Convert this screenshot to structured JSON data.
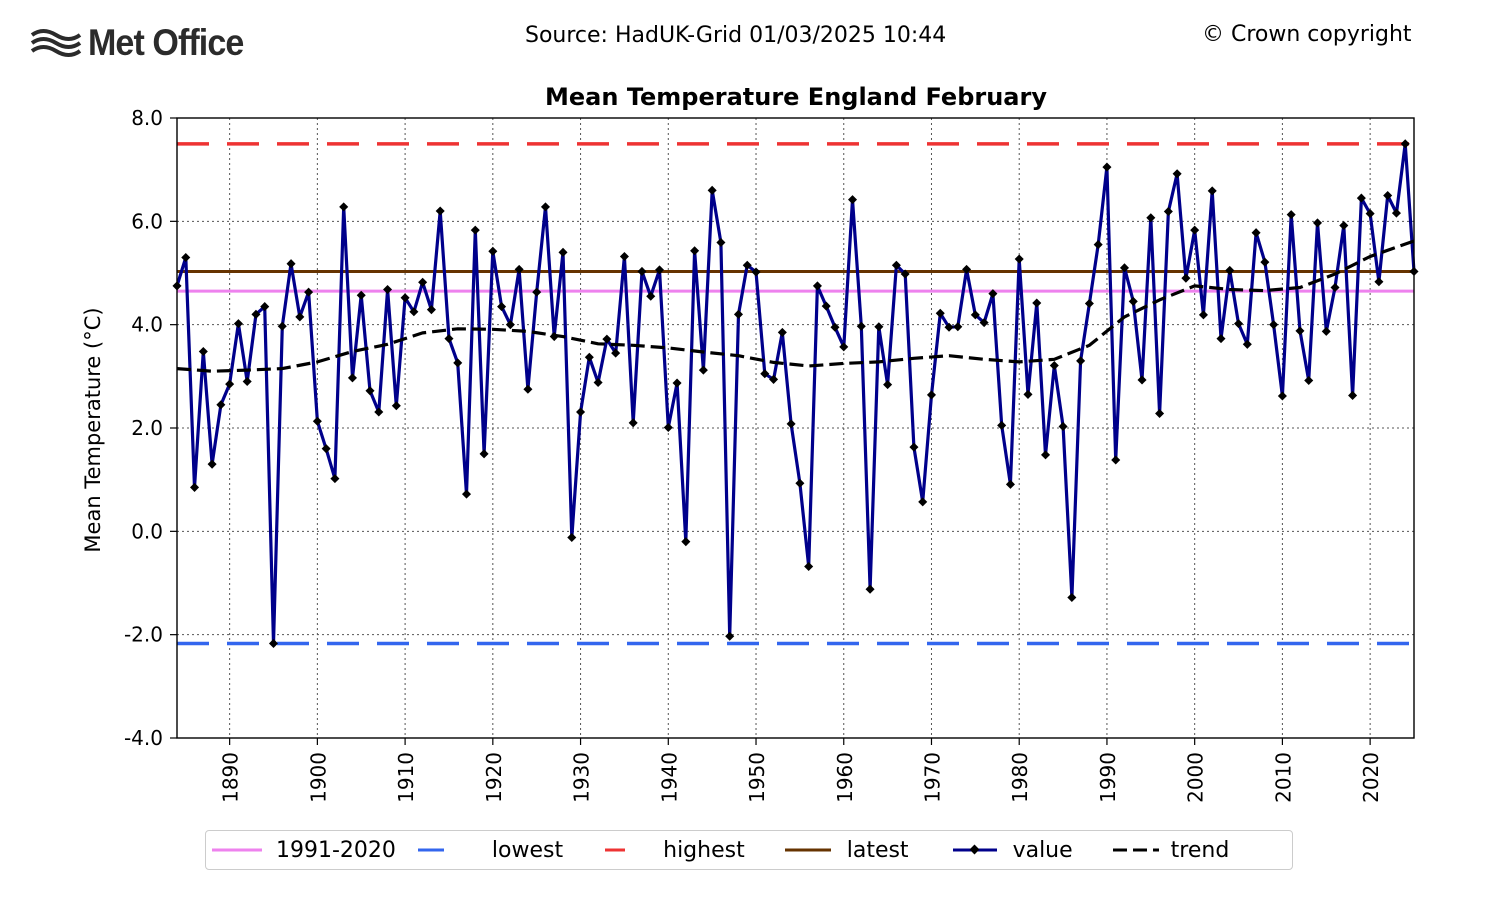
{
  "header": {
    "logo_text": "Met Office",
    "source_text": "Source: HadUK-Grid 01/03/2025 10:44",
    "copyright_text": "© Crown copyright"
  },
  "colors": {
    "value": "#00008b",
    "trend": "#000000",
    "baseline": "#ee82ee",
    "lowest": "#3366ee",
    "highest": "#ee3333",
    "latest": "#663300"
  },
  "chart_data": {
    "type": "line",
    "title": "Mean Temperature England February",
    "xlabel": "",
    "ylabel": "Mean Temperature (°C)",
    "xlim": [
      1884,
      2025
    ],
    "ylim": [
      -4,
      8
    ],
    "yticks": [
      "-4.0",
      "-2.0",
      "0.0",
      "2.0",
      "4.0",
      "6.0",
      "8.0"
    ],
    "xticks": [
      "1890",
      "1900",
      "1910",
      "1920",
      "1930",
      "1940",
      "1950",
      "1960",
      "1970",
      "1980",
      "1990",
      "2000",
      "2010",
      "2020"
    ],
    "grid": true,
    "legend_position": "below",
    "reference_lines": {
      "1991-2020": 4.65,
      "lowest": -2.17,
      "highest": 7.5,
      "latest": 5.03
    },
    "legend": [
      "1991-2020",
      "lowest",
      "highest",
      "latest",
      "value",
      "trend"
    ],
    "series": [
      {
        "name": "value",
        "x": [
          1884,
          1885,
          1886,
          1887,
          1888,
          1889,
          1890,
          1891,
          1892,
          1893,
          1894,
          1895,
          1896,
          1897,
          1898,
          1899,
          1900,
          1901,
          1902,
          1903,
          1904,
          1905,
          1906,
          1907,
          1908,
          1909,
          1910,
          1911,
          1912,
          1913,
          1914,
          1915,
          1916,
          1917,
          1918,
          1919,
          1920,
          1921,
          1922,
          1923,
          1924,
          1925,
          1926,
          1927,
          1928,
          1929,
          1930,
          1931,
          1932,
          1933,
          1934,
          1935,
          1936,
          1937,
          1938,
          1939,
          1940,
          1941,
          1942,
          1943,
          1944,
          1945,
          1946,
          1947,
          1948,
          1949,
          1950,
          1951,
          1952,
          1953,
          1954,
          1955,
          1956,
          1957,
          1958,
          1959,
          1960,
          1961,
          1962,
          1963,
          1964,
          1965,
          1966,
          1967,
          1968,
          1969,
          1970,
          1971,
          1972,
          1973,
          1974,
          1975,
          1976,
          1977,
          1978,
          1979,
          1980,
          1981,
          1982,
          1983,
          1984,
          1985,
          1986,
          1987,
          1988,
          1989,
          1990,
          1991,
          1992,
          1993,
          1994,
          1995,
          1996,
          1997,
          1998,
          1999,
          2000,
          2001,
          2002,
          2003,
          2004,
          2005,
          2006,
          2007,
          2008,
          2009,
          2010,
          2011,
          2012,
          2013,
          2014,
          2015,
          2016,
          2017,
          2018,
          2019,
          2020,
          2021,
          2022,
          2023,
          2024,
          2025
        ],
        "values": [
          4.75,
          5.3,
          0.85,
          3.48,
          1.3,
          2.45,
          2.85,
          4.02,
          2.9,
          4.2,
          4.35,
          -2.17,
          3.97,
          5.18,
          4.15,
          4.63,
          2.13,
          1.6,
          1.02,
          6.28,
          2.97,
          4.57,
          2.72,
          2.31,
          4.68,
          2.43,
          4.52,
          4.25,
          4.82,
          4.29,
          6.2,
          3.73,
          3.26,
          0.72,
          5.83,
          1.5,
          5.42,
          4.35,
          4.0,
          5.07,
          2.75,
          4.63,
          6.28,
          3.77,
          5.4,
          -0.12,
          2.31,
          3.37,
          2.88,
          3.72,
          3.45,
          5.32,
          2.1,
          5.03,
          4.55,
          5.06,
          2.01,
          2.87,
          -0.2,
          5.43,
          3.12,
          6.6,
          5.59,
          -2.03,
          4.2,
          5.15,
          5.02,
          3.05,
          2.94,
          3.85,
          2.08,
          0.93,
          -0.68,
          4.75,
          4.36,
          3.95,
          3.57,
          6.42,
          3.97,
          -1.12,
          3.96,
          2.84,
          5.15,
          4.98,
          1.63,
          0.57,
          2.64,
          4.22,
          3.95,
          3.96,
          5.07,
          4.19,
          4.04,
          4.6,
          2.05,
          0.91,
          5.27,
          2.65,
          4.42,
          1.48,
          3.21,
          2.03,
          -1.28,
          3.3,
          4.41,
          5.55,
          7.05,
          1.38,
          5.1,
          4.45,
          2.93,
          6.07,
          2.28,
          6.19,
          6.92,
          4.9,
          5.83,
          4.19,
          6.59,
          3.73,
          5.05,
          4.02,
          3.62,
          5.78,
          5.21,
          4.0,
          2.62,
          6.13,
          3.88,
          2.92,
          5.97,
          3.87,
          4.72,
          5.92,
          2.63,
          6.45,
          6.15,
          4.83,
          6.5,
          6.16,
          7.5,
          5.03
        ]
      },
      {
        "name": "trend",
        "x": [
          1884,
          1888,
          1892,
          1896,
          1900,
          1904,
          1908,
          1912,
          1916,
          1920,
          1924,
          1928,
          1932,
          1936,
          1940,
          1944,
          1948,
          1952,
          1956,
          1960,
          1964,
          1968,
          1972,
          1976,
          1980,
          1984,
          1988,
          1992,
          1996,
          2000,
          2004,
          2008,
          2012,
          2016,
          2020,
          2025
        ],
        "values": [
          3.15,
          3.1,
          3.12,
          3.15,
          3.28,
          3.48,
          3.62,
          3.84,
          3.92,
          3.91,
          3.87,
          3.77,
          3.63,
          3.6,
          3.55,
          3.47,
          3.4,
          3.27,
          3.2,
          3.25,
          3.28,
          3.35,
          3.4,
          3.33,
          3.28,
          3.33,
          3.6,
          4.15,
          4.48,
          4.75,
          4.68,
          4.66,
          4.72,
          4.98,
          5.32,
          5.62
        ]
      }
    ]
  }
}
